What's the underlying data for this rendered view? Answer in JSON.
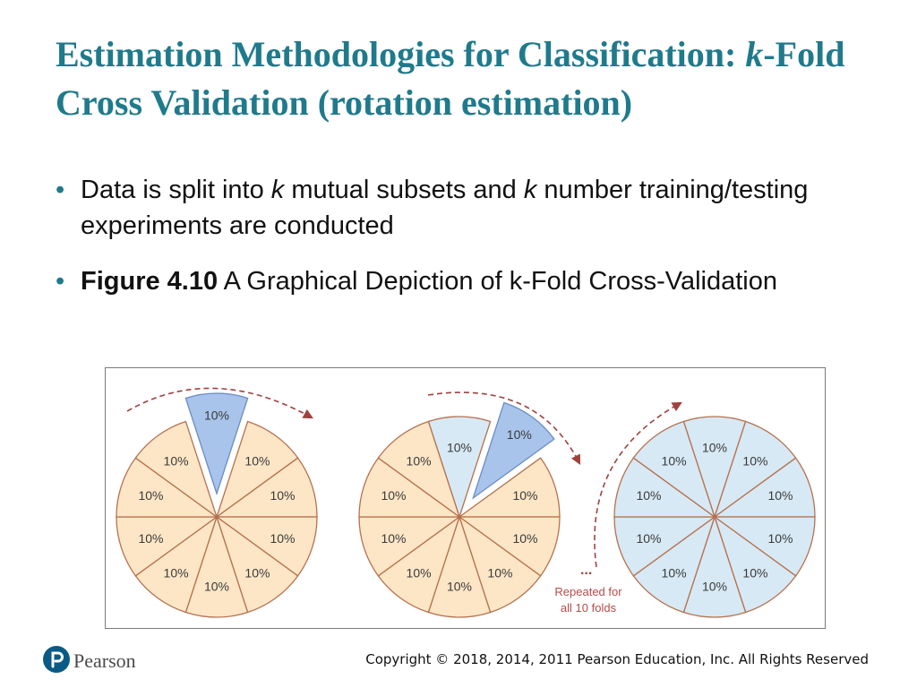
{
  "slide": {
    "title_part1": "Estimation Methodologies for Classification: ",
    "title_k": "k",
    "title_part2": "-Fold Cross Validation (rotation estimation)"
  },
  "bullets": {
    "b1_a": "Data is split into ",
    "b1_k1": "k",
    "b1_b": " mutual subsets and ",
    "b1_k2": "k",
    "b1_c": " number training/testing experiments are conducted",
    "b2_bold": "Figure 4.10",
    "b2_rest": " A Graphical Depiction of k-Fold Cross-Validation"
  },
  "figure": {
    "slice_label": "10%",
    "folds": 10,
    "note_dots": "...",
    "note_line1": "Repeated for",
    "note_line2": "all 10 folds",
    "colors": {
      "train_fill": "#fde6c6",
      "train_stroke": "#b5714e",
      "test_fill": "#a8c4ea",
      "test_stroke": "#6a8cc8",
      "done_fill": "#d7e9f4",
      "arrow": "#a0413e"
    }
  },
  "footer": {
    "brand": "Pearson",
    "copyright": "Copyright © 2018, 2014, 2011 Pearson Education, Inc. All Rights Reserved"
  }
}
